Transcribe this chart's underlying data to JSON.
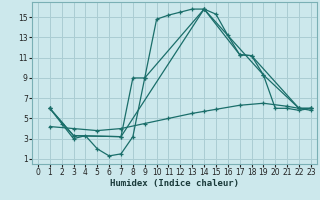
{
  "xlabel": "Humidex (Indice chaleur)",
  "bg_color": "#cce8ec",
  "grid_color": "#aacdd3",
  "line_color": "#1a6e6a",
  "xlim": [
    -0.5,
    23.5
  ],
  "ylim": [
    0.5,
    16.5
  ],
  "xticks": [
    0,
    1,
    2,
    3,
    4,
    5,
    6,
    7,
    8,
    9,
    10,
    11,
    12,
    13,
    14,
    15,
    16,
    17,
    18,
    19,
    20,
    21,
    22,
    23
  ],
  "yticks": [
    1,
    3,
    5,
    7,
    9,
    11,
    13,
    15
  ],
  "line1_x": [
    1,
    2,
    3,
    4,
    5,
    6,
    7,
    8,
    9,
    10,
    11,
    12,
    13,
    14,
    15,
    16,
    17,
    18,
    19,
    20,
    21,
    22,
    23
  ],
  "line1_y": [
    6.0,
    4.5,
    3.0,
    3.3,
    2.0,
    1.3,
    1.5,
    3.2,
    9.0,
    14.8,
    15.2,
    15.5,
    15.8,
    15.8,
    15.3,
    13.2,
    11.3,
    11.2,
    9.3,
    6.0,
    6.0,
    5.8,
    6.0
  ],
  "line2_x": [
    1,
    3,
    7,
    8,
    9,
    14,
    17,
    18,
    22,
    23
  ],
  "line2_y": [
    6.0,
    3.3,
    3.2,
    9.0,
    9.0,
    15.8,
    11.3,
    11.2,
    6.0,
    6.0
  ],
  "line3_x": [
    1,
    3,
    7,
    14,
    19,
    22,
    23
  ],
  "line3_y": [
    6.0,
    3.3,
    3.2,
    15.8,
    9.3,
    6.0,
    6.0
  ],
  "line4_x": [
    1,
    3,
    5,
    7,
    9,
    11,
    13,
    14,
    15,
    17,
    19,
    21,
    22,
    23
  ],
  "line4_y": [
    4.2,
    4.0,
    3.8,
    4.0,
    4.5,
    5.0,
    5.5,
    5.7,
    5.9,
    6.3,
    6.5,
    6.2,
    6.0,
    5.8
  ]
}
